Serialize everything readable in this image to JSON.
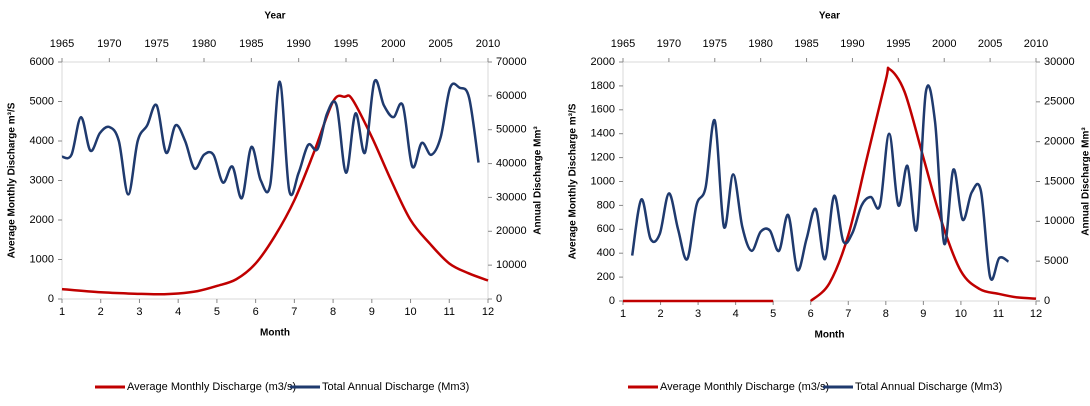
{
  "chart_data": [
    {
      "type": "line",
      "xlabel": "Month",
      "x2label": "Year",
      "ylabel": "Average Monthly Discharge m³/S",
      "y2label": "Annual Discharge Mm³",
      "xlim": [
        1,
        12
      ],
      "xticks": [
        1,
        2,
        3,
        4,
        5,
        6,
        7,
        8,
        9,
        10,
        11,
        12
      ],
      "x2lim": [
        1965,
        2010
      ],
      "x2ticks": [
        1965,
        1970,
        1975,
        1980,
        1985,
        1990,
        1995,
        2000,
        2005,
        2010
      ],
      "ylim": [
        0,
        6000
      ],
      "yticks": [
        0,
        1000,
        2000,
        3000,
        4000,
        5000,
        6000
      ],
      "y2lim": [
        0,
        70000
      ],
      "y2ticks": [
        0,
        10000,
        20000,
        30000,
        40000,
        50000,
        60000,
        70000
      ],
      "series": [
        {
          "name": "Average Monthly Discharge (m3/s)",
          "color": "#c00000",
          "x": [
            1,
            2,
            3,
            3.5,
            4,
            4.5,
            5,
            5.5,
            6,
            6.5,
            7,
            7.5,
            8,
            8.3,
            8.5,
            9,
            9.5,
            10,
            10.5,
            11,
            11.5,
            12
          ],
          "values": [
            250,
            170,
            130,
            120,
            140,
            200,
            330,
            500,
            900,
            1600,
            2500,
            3700,
            5000,
            5120,
            5050,
            4100,
            3000,
            2000,
            1400,
            900,
            650,
            470
          ]
        },
        {
          "name": "Total Annual Discharge (Mm3)",
          "color": "#1f3a6e",
          "axis": "y2",
          "xaxis": "x2",
          "x": [
            1965,
            1966,
            1967,
            1968,
            1969,
            1970,
            1971,
            1972,
            1973,
            1974,
            1975,
            1976,
            1977,
            1978,
            1979,
            1980,
            1981,
            1982,
            1983,
            1984,
            1985,
            1986,
            1987,
            1988,
            1989,
            1990,
            1991,
            1992,
            1993,
            1994,
            1995,
            1996,
            1997,
            1998,
            1999,
            2000,
            2001,
            2002,
            2003,
            2004,
            2005,
            2006,
            2007,
            2008,
            2009
          ],
          "values": [
            42000,
            42600,
            53700,
            43800,
            49000,
            50800,
            46700,
            30900,
            46700,
            51300,
            57200,
            43200,
            51300,
            46700,
            38500,
            42600,
            42600,
            34400,
            39100,
            29800,
            44900,
            35000,
            33800,
            64200,
            32100,
            37300,
            45500,
            44300,
            54800,
            57200,
            37300,
            54800,
            43200,
            64200,
            57200,
            53700,
            57200,
            39100,
            46100,
            42600,
            47800,
            62400,
            62400,
            59500,
            40300
          ]
        }
      ]
    },
    {
      "type": "line",
      "xlabel": "Month",
      "x2label": "Year",
      "ylabel": "Average Monthly Discharge m³/S",
      "y2label": "Annual Discharge Mm³",
      "xlim": [
        1,
        12
      ],
      "xticks": [
        1,
        2,
        3,
        4,
        5,
        6,
        7,
        8,
        9,
        10,
        11,
        12
      ],
      "x2lim": [
        1965,
        2010
      ],
      "x2ticks": [
        1965,
        1970,
        1975,
        1980,
        1985,
        1990,
        1995,
        2000,
        2005,
        2010
      ],
      "ylim": [
        0,
        2000
      ],
      "yticks": [
        0,
        200,
        400,
        600,
        800,
        1000,
        1200,
        1400,
        1600,
        1800,
        2000
      ],
      "y2lim": [
        0,
        30000
      ],
      "y2ticks": [
        0,
        5000,
        10000,
        15000,
        20000,
        25000,
        30000
      ],
      "series": [
        {
          "name": "Average Monthly Discharge (m3/s)",
          "color": "#c00000",
          "x": [
            1,
            2,
            3,
            4,
            5,
            5.5,
            6,
            6.5,
            7,
            7.5,
            8,
            8.1,
            8.5,
            9,
            9.5,
            10,
            10.5,
            11,
            11.5,
            12
          ],
          "values": [
            0,
            0,
            0,
            0,
            0,
            null,
            0,
            150,
            550,
            1200,
            1850,
            1940,
            1750,
            1200,
            650,
            250,
            100,
            60,
            30,
            20
          ]
        },
        {
          "name": "Total Annual Discharge (Mm3)",
          "color": "#1f3a6e",
          "axis": "y2",
          "xaxis": "x2",
          "x": [
            1966,
            1967,
            1968,
            1969,
            1970,
            1971,
            1972,
            1973,
            1974,
            1975,
            1976,
            1977,
            1978,
            1979,
            1980,
            1981,
            1982,
            1983,
            1984,
            1985,
            1986,
            1987,
            1988,
            1989,
            1990,
            1991,
            1992,
            1993,
            1994,
            1995,
            1996,
            1997,
            1998,
            1999,
            2000,
            2001,
            2002,
            2003,
            2004,
            2005,
            2006,
            2007
          ],
          "values": [
            5700,
            12750,
            7800,
            8400,
            13500,
            9000,
            5250,
            12000,
            14250,
            22650,
            9300,
            15900,
            9300,
            6300,
            8700,
            8850,
            6300,
            10800,
            3900,
            7800,
            11550,
            5250,
            13200,
            7500,
            8550,
            12000,
            13050,
            12000,
            21000,
            12000,
            16950,
            9000,
            26250,
            22500,
            7200,
            16500,
            10200,
            13650,
            13800,
            3000,
            5400,
            4950
          ]
        }
      ]
    }
  ]
}
